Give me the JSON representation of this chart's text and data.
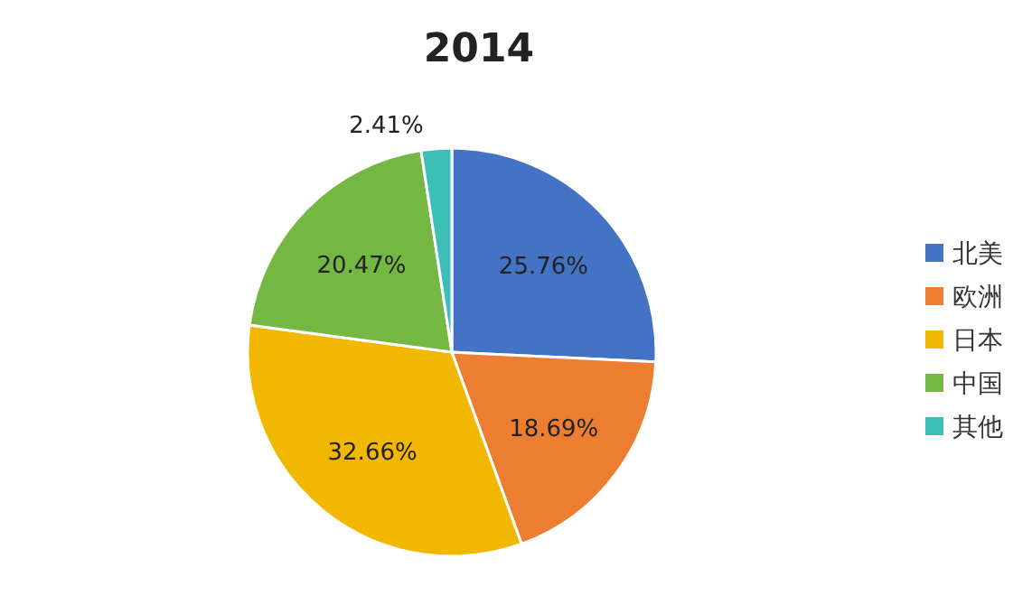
{
  "chart_data": {
    "type": "pie",
    "title": "2014",
    "categories": [
      "北美",
      "欧洲",
      "日本",
      "中国",
      "其他"
    ],
    "values": [
      25.76,
      18.69,
      32.66,
      20.47,
      2.41
    ],
    "colors": [
      "#4472c4",
      "#ed7d31",
      "#f2b800",
      "#74b843",
      "#3cc0b6"
    ],
    "value_labels": [
      "25.76%",
      "18.69%",
      "32.66%",
      "20.47%",
      "2.41%"
    ],
    "legend": "right"
  }
}
